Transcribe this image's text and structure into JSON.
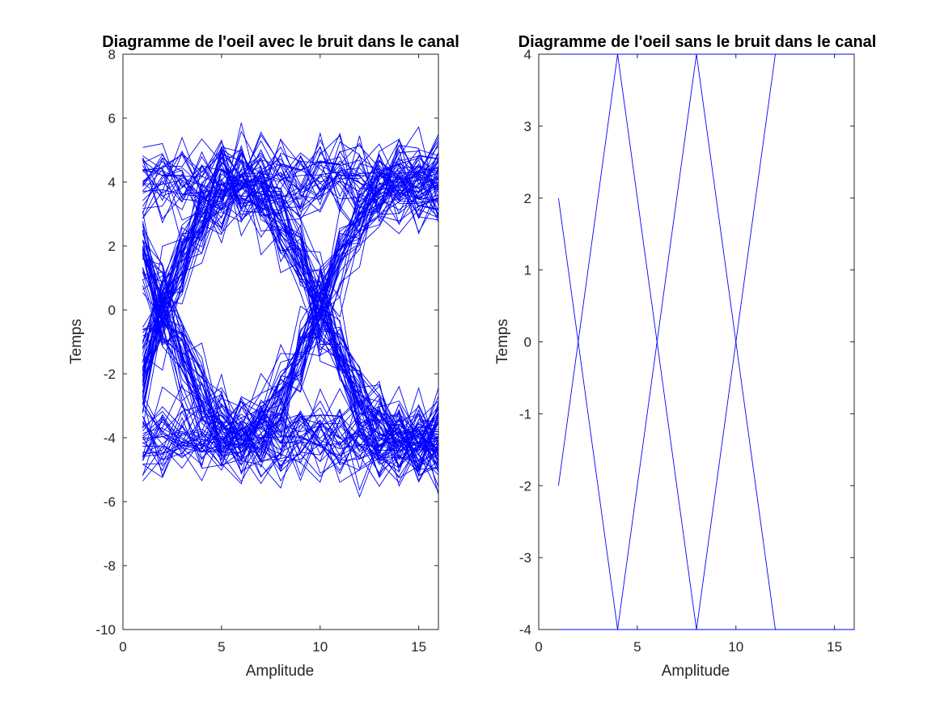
{
  "figure": {
    "background": "#ffffff",
    "line_color": "#0000ff",
    "axis_color": "#262626"
  },
  "chart_data": [
    {
      "type": "line",
      "title": "Diagramme de l'oeil avec le bruit dans le canal",
      "xlabel": "Amplitude",
      "ylabel": "Temps",
      "xlim": [
        0,
        16
      ],
      "ylim": [
        -10,
        8
      ],
      "xticks": [
        0,
        5,
        10,
        15
      ],
      "xtick_labels": [
        "0",
        "5",
        "10",
        "15"
      ],
      "yticks": [
        -10,
        -8,
        -6,
        -4,
        -2,
        0,
        2,
        4,
        6,
        8
      ],
      "ytick_labels": [
        "-10",
        "-8",
        "-6",
        "-4",
        "-2",
        "0",
        "2",
        "4",
        "6",
        "8"
      ],
      "grid": false,
      "x": [
        1,
        2,
        3,
        4,
        5,
        6,
        7,
        8,
        9,
        10,
        11,
        12,
        13,
        14,
        15,
        16
      ],
      "eye_traces": {
        "count": 140,
        "symbol_period": 8,
        "symbol_levels": [
          -4,
          4
        ],
        "noise_amplitude": 1.4,
        "crossing_points": [
          2,
          10
        ]
      }
    },
    {
      "type": "line",
      "title": "Diagramme de l'oeil sans le bruit dans le canal",
      "xlabel": "Amplitude",
      "ylabel": "Temps",
      "xlim": [
        0,
        16
      ],
      "ylim": [
        -4,
        4
      ],
      "xticks": [
        0,
        5,
        10,
        15
      ],
      "xtick_labels": [
        "0",
        "5",
        "10",
        "15"
      ],
      "yticks": [
        -4,
        -3,
        -2,
        -1,
        0,
        1,
        2,
        3,
        4
      ],
      "ytick_labels": [
        "-4",
        "-3",
        "-2",
        "-1",
        "0",
        "1",
        "2",
        "3",
        "4"
      ],
      "grid": false,
      "series": [
        {
          "x": [
            1,
            4,
            8,
            12,
            16
          ],
          "y": [
            2,
            -4,
            -4,
            4,
            4
          ]
        },
        {
          "x": [
            1,
            4,
            8,
            12,
            16
          ],
          "y": [
            -2,
            4,
            4,
            -4,
            -4
          ]
        },
        {
          "x": [
            1,
            4,
            8,
            12,
            16
          ],
          "y": [
            4,
            4,
            4,
            4,
            4
          ]
        },
        {
          "x": [
            1,
            4,
            8,
            12,
            16
          ],
          "y": [
            -4,
            -4,
            -4,
            -4,
            -4
          ]
        },
        {
          "x": [
            1,
            4,
            8,
            12,
            16
          ],
          "y": [
            4,
            4,
            -4,
            -4,
            -4
          ]
        },
        {
          "x": [
            1,
            4,
            8,
            12,
            16
          ],
          "y": [
            -4,
            -4,
            4,
            4,
            4
          ]
        }
      ]
    }
  ]
}
